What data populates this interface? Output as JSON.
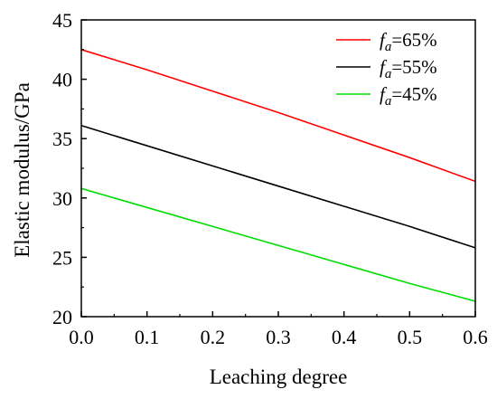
{
  "chart_data": {
    "type": "line",
    "xlabel": "Leaching degree",
    "ylabel": "Elastic modulus/GPa",
    "xlim": [
      0.0,
      0.6
    ],
    "ylim": [
      20,
      45
    ],
    "xticks": [
      "0.0",
      "0.1",
      "0.2",
      "0.3",
      "0.4",
      "0.5",
      "0.6"
    ],
    "yticks": [
      "20",
      "25",
      "30",
      "35",
      "40",
      "45"
    ],
    "legend_position": "top-right",
    "grid": false,
    "series": [
      {
        "name": "fa=65%",
        "legend_var": "f",
        "legend_sub": "a",
        "legend_rest": "=65%",
        "color": "#ff0000",
        "x": [
          0.0,
          0.1,
          0.2,
          0.3,
          0.4,
          0.5,
          0.6
        ],
        "values": [
          42.5,
          40.8,
          39.0,
          37.2,
          35.3,
          33.4,
          31.4
        ]
      },
      {
        "name": "fa=55%",
        "legend_var": "f",
        "legend_sub": "a",
        "legend_rest": "=55%",
        "color": "#000000",
        "x": [
          0.0,
          0.1,
          0.2,
          0.3,
          0.4,
          0.5,
          0.6
        ],
        "values": [
          36.1,
          34.4,
          32.7,
          31.0,
          29.3,
          27.6,
          25.8
        ]
      },
      {
        "name": "fa=45%",
        "legend_var": "f",
        "legend_sub": "a",
        "legend_rest": "=45%",
        "color": "#00dd00",
        "x": [
          0.0,
          0.1,
          0.2,
          0.3,
          0.4,
          0.5,
          0.6
        ],
        "values": [
          30.8,
          29.2,
          27.6,
          26.0,
          24.4,
          22.8,
          21.3
        ]
      }
    ]
  }
}
